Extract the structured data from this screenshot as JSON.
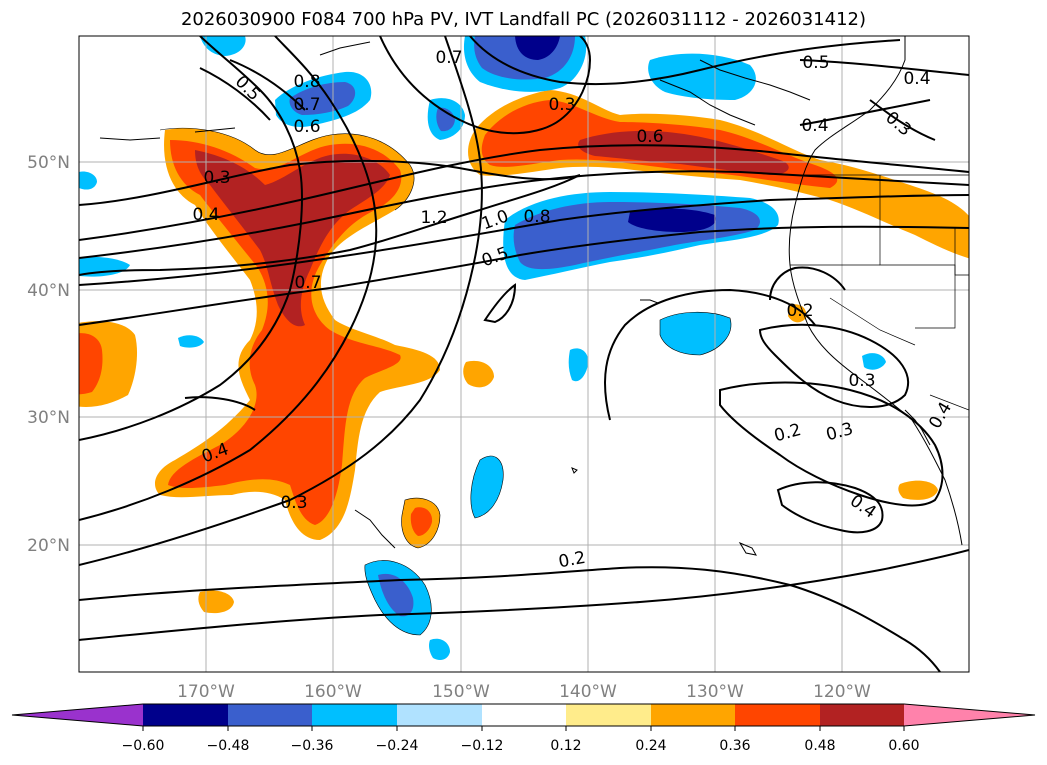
{
  "title": "2026030900 F084 700 hPa PV, IVT Landfall PC (2026031112 - 2026031412)",
  "lat_labels": [
    "50°N",
    "40°N",
    "30°N",
    "20°N"
  ],
  "lon_labels": [
    "170°W",
    "160°W",
    "150°W",
    "140°W",
    "130°W",
    "120°W"
  ],
  "colorbar": {
    "colors": [
      "#9a32cd",
      "#00008b",
      "#3a5fcd",
      "#00bfff",
      "#b0e2ff",
      "#ffffff",
      "#ffec8b",
      "#ffa500",
      "#ff4500",
      "#b22222",
      "#ff82ab"
    ],
    "tick_labels": [
      "−0.60",
      "−0.48",
      "−0.36",
      "−0.24",
      "−0.12",
      "0.12",
      "0.24",
      "0.36",
      "0.48",
      "0.60"
    ]
  },
  "contour_labels": [
    "0.7",
    "0.5",
    "0.8",
    "0.7",
    "0.6",
    "0.3",
    "0.6",
    "0.5",
    "0.4",
    "0.4",
    "0.3",
    "0.3",
    "0.4",
    "1.2",
    "1.0",
    "0.8",
    "0.5",
    "0.7",
    "0.2",
    "0.3",
    "0.2",
    "0.3",
    "0.4",
    "0.4",
    "0.3",
    "0.2",
    "0.4"
  ]
}
